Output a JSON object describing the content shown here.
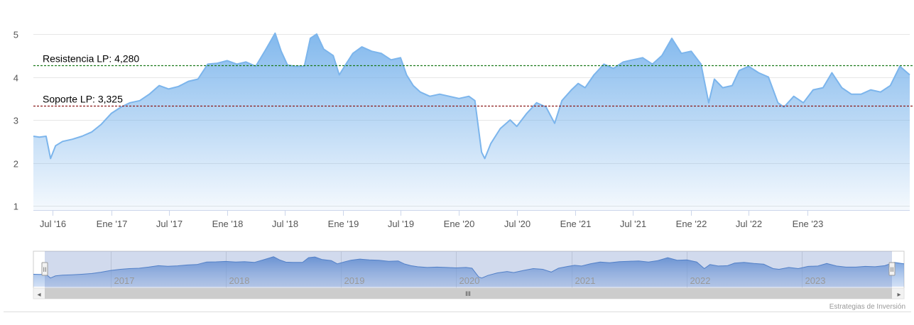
{
  "chart_data": {
    "type": "area",
    "y_ticks": [
      "1",
      "2",
      "3",
      "4",
      "5"
    ],
    "ylim": [
      1,
      5
    ],
    "x_range": [
      "2016-05-01",
      "2023-11-20"
    ],
    "x_ticks": [
      {
        "date": "2016-07-01",
        "label": "Jul '16"
      },
      {
        "date": "2017-01-01",
        "label": "Ene '17"
      },
      {
        "date": "2017-07-01",
        "label": "Jul '17"
      },
      {
        "date": "2018-01-01",
        "label": "Ene '18"
      },
      {
        "date": "2018-07-01",
        "label": "Jul '18"
      },
      {
        "date": "2019-01-01",
        "label": "Ene '19"
      },
      {
        "date": "2019-07-01",
        "label": "Jul '19"
      },
      {
        "date": "2020-01-01",
        "label": "Ene '20"
      },
      {
        "date": "2020-07-01",
        "label": "Jul '20"
      },
      {
        "date": "2021-01-01",
        "label": "Ene '21"
      },
      {
        "date": "2021-07-01",
        "label": "Jul '21"
      },
      {
        "date": "2022-01-01",
        "label": "Ene '22"
      },
      {
        "date": "2022-07-01",
        "label": "Jul '22"
      },
      {
        "date": "2023-01-01",
        "label": "Ene '23"
      }
    ],
    "navigator_ticks": [
      {
        "date": "2017-01-01",
        "label": "2017"
      },
      {
        "date": "2018-01-01",
        "label": "2018"
      },
      {
        "date": "2019-01-01",
        "label": "2019"
      },
      {
        "date": "2020-01-01",
        "label": "2020"
      },
      {
        "date": "2021-01-01",
        "label": "2021"
      },
      {
        "date": "2022-01-01",
        "label": "2022"
      },
      {
        "date": "2023-01-01",
        "label": "2023"
      }
    ],
    "reference_lines": [
      {
        "label": "Resistencia LP: 4,280",
        "value": 4.28,
        "color": "#1a7a1a"
      },
      {
        "label": "Soporte LP: 3,325",
        "value": 3.325,
        "color": "#8b1a1a"
      }
    ],
    "series": [
      {
        "color": "#7cb5ec",
        "points": [
          [
            "2016-05-01",
            2.62
          ],
          [
            "2016-05-20",
            2.6
          ],
          [
            "2016-06-10",
            2.62
          ],
          [
            "2016-06-24",
            2.1
          ],
          [
            "2016-07-10",
            2.4
          ],
          [
            "2016-08-01",
            2.5
          ],
          [
            "2016-09-01",
            2.55
          ],
          [
            "2016-10-01",
            2.62
          ],
          [
            "2016-11-01",
            2.72
          ],
          [
            "2016-12-01",
            2.9
          ],
          [
            "2017-01-01",
            3.15
          ],
          [
            "2017-02-01",
            3.3
          ],
          [
            "2017-03-01",
            3.4
          ],
          [
            "2017-04-01",
            3.45
          ],
          [
            "2017-05-01",
            3.6
          ],
          [
            "2017-06-01",
            3.8
          ],
          [
            "2017-07-01",
            3.72
          ],
          [
            "2017-08-01",
            3.78
          ],
          [
            "2017-09-01",
            3.9
          ],
          [
            "2017-10-01",
            3.95
          ],
          [
            "2017-11-01",
            4.3
          ],
          [
            "2017-12-01",
            4.32
          ],
          [
            "2018-01-01",
            4.38
          ],
          [
            "2018-02-01",
            4.3
          ],
          [
            "2018-03-01",
            4.35
          ],
          [
            "2018-04-01",
            4.25
          ],
          [
            "2018-05-01",
            4.62
          ],
          [
            "2018-06-01",
            5.02
          ],
          [
            "2018-06-20",
            4.6
          ],
          [
            "2018-07-10",
            4.28
          ],
          [
            "2018-08-01",
            4.25
          ],
          [
            "2018-09-01",
            4.25
          ],
          [
            "2018-09-20",
            4.9
          ],
          [
            "2018-10-10",
            5.0
          ],
          [
            "2018-11-01",
            4.65
          ],
          [
            "2018-12-01",
            4.5
          ],
          [
            "2018-12-20",
            4.05
          ],
          [
            "2019-01-10",
            4.3
          ],
          [
            "2019-02-01",
            4.55
          ],
          [
            "2019-03-01",
            4.7
          ],
          [
            "2019-04-01",
            4.6
          ],
          [
            "2019-05-01",
            4.55
          ],
          [
            "2019-06-01",
            4.4
          ],
          [
            "2019-07-01",
            4.45
          ],
          [
            "2019-07-20",
            4.05
          ],
          [
            "2019-08-10",
            3.8
          ],
          [
            "2019-09-01",
            3.65
          ],
          [
            "2019-10-01",
            3.55
          ],
          [
            "2019-11-01",
            3.6
          ],
          [
            "2019-12-01",
            3.55
          ],
          [
            "2020-01-01",
            3.5
          ],
          [
            "2020-02-01",
            3.55
          ],
          [
            "2020-02-20",
            3.45
          ],
          [
            "2020-03-12",
            2.25
          ],
          [
            "2020-03-22",
            2.1
          ],
          [
            "2020-04-10",
            2.45
          ],
          [
            "2020-05-10",
            2.8
          ],
          [
            "2020-06-10",
            3.0
          ],
          [
            "2020-07-01",
            2.85
          ],
          [
            "2020-08-01",
            3.15
          ],
          [
            "2020-09-01",
            3.4
          ],
          [
            "2020-10-01",
            3.3
          ],
          [
            "2020-10-28",
            2.92
          ],
          [
            "2020-11-20",
            3.45
          ],
          [
            "2020-12-20",
            3.7
          ],
          [
            "2021-01-10",
            3.85
          ],
          [
            "2021-02-01",
            3.75
          ],
          [
            "2021-03-01",
            4.05
          ],
          [
            "2021-04-01",
            4.3
          ],
          [
            "2021-05-01",
            4.2
          ],
          [
            "2021-06-01",
            4.35
          ],
          [
            "2021-07-01",
            4.4
          ],
          [
            "2021-08-01",
            4.45
          ],
          [
            "2021-09-01",
            4.3
          ],
          [
            "2021-10-01",
            4.5
          ],
          [
            "2021-11-01",
            4.9
          ],
          [
            "2021-12-01",
            4.55
          ],
          [
            "2022-01-01",
            4.6
          ],
          [
            "2022-02-01",
            4.3
          ],
          [
            "2022-02-25",
            3.4
          ],
          [
            "2022-03-15",
            3.95
          ],
          [
            "2022-04-10",
            3.75
          ],
          [
            "2022-05-10",
            3.8
          ],
          [
            "2022-06-01",
            4.15
          ],
          [
            "2022-07-01",
            4.25
          ],
          [
            "2022-08-01",
            4.1
          ],
          [
            "2022-09-01",
            4.0
          ],
          [
            "2022-10-01",
            3.4
          ],
          [
            "2022-10-20",
            3.3
          ],
          [
            "2022-11-20",
            3.55
          ],
          [
            "2022-12-20",
            3.4
          ],
          [
            "2023-01-20",
            3.7
          ],
          [
            "2023-02-20",
            3.75
          ],
          [
            "2023-03-20",
            4.1
          ],
          [
            "2023-04-20",
            3.75
          ],
          [
            "2023-05-20",
            3.6
          ],
          [
            "2023-06-20",
            3.6
          ],
          [
            "2023-07-20",
            3.7
          ],
          [
            "2023-08-20",
            3.65
          ],
          [
            "2023-09-20",
            3.8
          ],
          [
            "2023-10-20",
            4.25
          ],
          [
            "2023-11-20",
            4.05
          ]
        ]
      }
    ],
    "grid": true
  },
  "navigator": {
    "scroll_left_arrow": "◂",
    "scroll_right_arrow": "▸",
    "scroll_grip": "III",
    "handle_grip": "II"
  },
  "credits": "Estrategias de Inversión"
}
